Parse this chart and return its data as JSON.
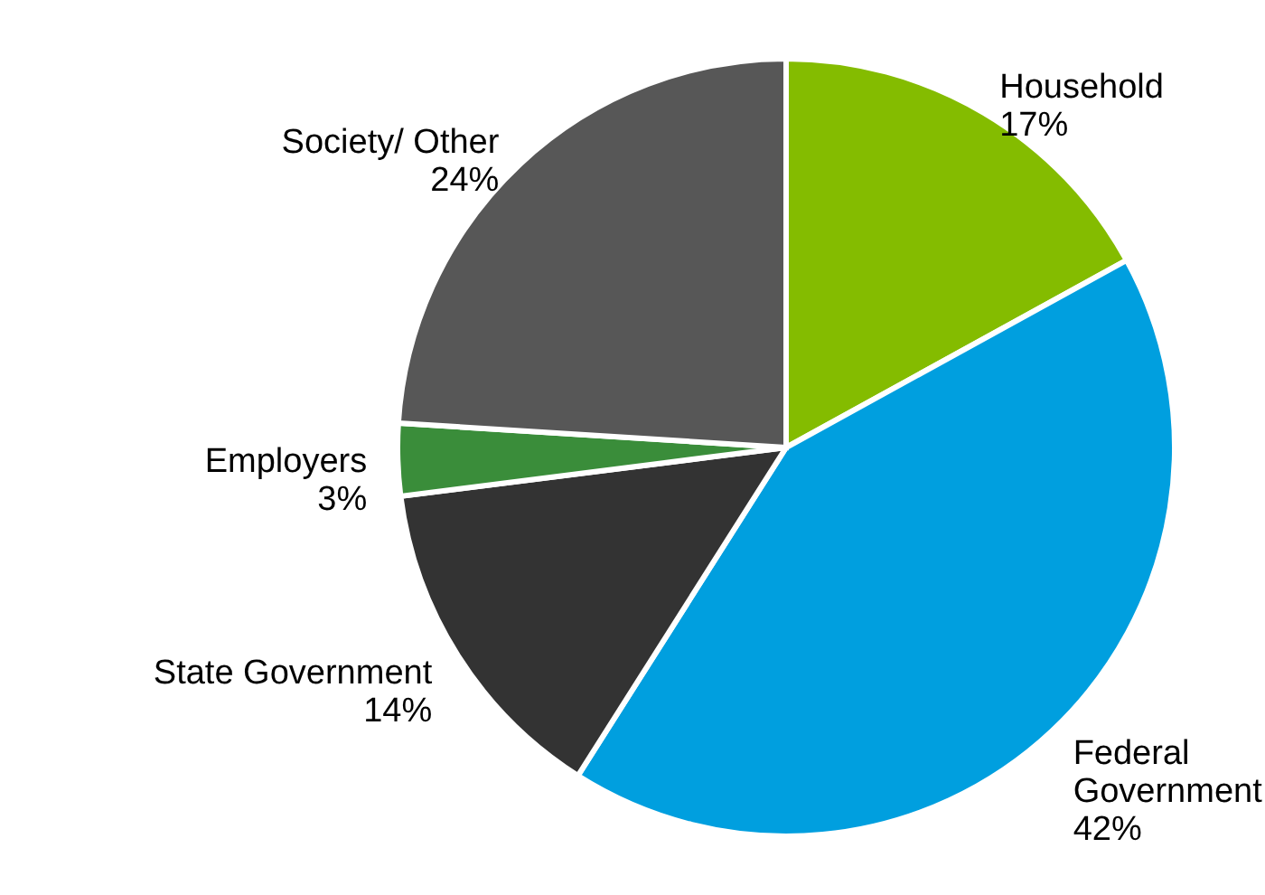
{
  "chart_data": {
    "type": "pie",
    "categories": [
      "Household",
      "Federal Government",
      "State Government",
      "Employers",
      "Society/ Other"
    ],
    "values": [
      17,
      42,
      14,
      3,
      24
    ],
    "colors": [
      "#84bc00",
      "#009fdf",
      "#333333",
      "#3a8d3a",
      "#575757"
    ],
    "value_labels": [
      "17%",
      "42%",
      "14%",
      "3%",
      "24%"
    ]
  }
}
